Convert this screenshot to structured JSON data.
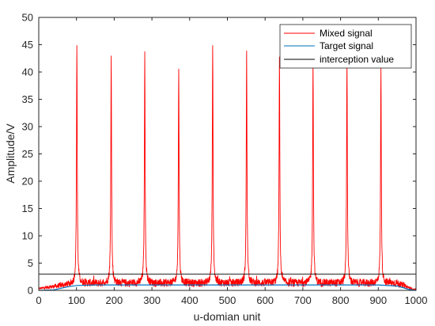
{
  "chart_data": {
    "type": "line",
    "xlabel": "u-domian unit",
    "ylabel": "Amplitude/V",
    "xlim": [
      0,
      1000
    ],
    "ylim": [
      0,
      50
    ],
    "xticks": [
      0,
      100,
      200,
      300,
      400,
      500,
      600,
      700,
      800,
      900,
      1000
    ],
    "yticks": [
      0,
      5,
      10,
      15,
      20,
      25,
      30,
      35,
      40,
      45,
      50
    ],
    "grid": false,
    "legend_position": "top-right",
    "series": [
      {
        "name": "Mixed signal",
        "color": "#ff0000",
        "peaks": [
          {
            "x": 101,
            "y": 43.8
          },
          {
            "x": 192,
            "y": 41.7
          },
          {
            "x": 281,
            "y": 42.0
          },
          {
            "x": 371,
            "y": 39.5
          },
          {
            "x": 461,
            "y": 43.8
          },
          {
            "x": 551,
            "y": 42.0
          },
          {
            "x": 638,
            "y": 41.5
          },
          {
            "x": 727,
            "y": 41.0
          },
          {
            "x": 817,
            "y": 41.0
          },
          {
            "x": 907,
            "y": 39.5
          }
        ],
        "baseline_level": 1.3
      },
      {
        "name": "Target signal",
        "color": "#0072bd",
        "x": [
          0,
          40,
          80,
          100,
          150,
          200,
          300,
          400,
          500,
          600,
          700,
          800,
          900,
          950,
          980,
          1000
        ],
        "y": [
          0,
          0.1,
          0.7,
          0.9,
          1.0,
          1.0,
          1.0,
          1.0,
          1.0,
          1.0,
          1.0,
          1.0,
          1.0,
          0.8,
          0.2,
          0
        ]
      },
      {
        "name": "interception value",
        "color": "#000000",
        "x": [
          0,
          1000
        ],
        "y": [
          3,
          3
        ]
      }
    ]
  }
}
